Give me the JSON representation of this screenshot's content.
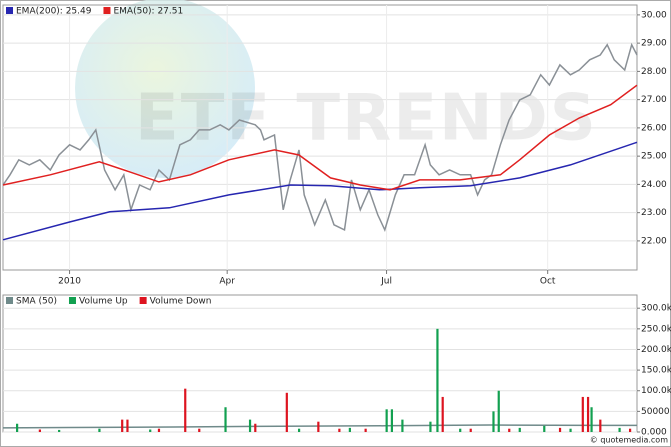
{
  "watermark": "ETF TRENDS",
  "footer": "© quotemedia.com",
  "chart_data": [
    {
      "type": "line",
      "grid": true,
      "legend": "top-left",
      "xlim": [
        -38,
        324
      ],
      "xticks": [
        {
          "value": 0,
          "label": "2010"
        },
        {
          "value": 90,
          "label": "Apr"
        },
        {
          "value": 181,
          "label": "Jul"
        },
        {
          "value": 273,
          "label": "Oct"
        }
      ],
      "ylim": [
        20.97,
        30.35
      ],
      "yticks": [
        {
          "value": 22,
          "label": "22.00"
        },
        {
          "value": 23,
          "label": "23.00"
        },
        {
          "value": 24,
          "label": "24.00"
        },
        {
          "value": 25,
          "label": "25.00"
        },
        {
          "value": 26,
          "label": "26.00"
        },
        {
          "value": 27,
          "label": "27.00"
        },
        {
          "value": 28,
          "label": "28.00"
        },
        {
          "value": 29,
          "label": "29.00"
        },
        {
          "value": 30,
          "label": "30.00"
        }
      ],
      "series": [
        {
          "color": "#8a9096",
          "x": [
            -38,
            -34,
            -29,
            -23,
            -17,
            -11,
            -6,
            0,
            6,
            11,
            15,
            20,
            26,
            31,
            35,
            40,
            46,
            51,
            57,
            63,
            69,
            74,
            80,
            86,
            91,
            97,
            106,
            109,
            111,
            117,
            122,
            126,
            131,
            134,
            140,
            146,
            151,
            157,
            161,
            166,
            171,
            176,
            180,
            186,
            191,
            197,
            203,
            206,
            211,
            217,
            223,
            229,
            233,
            237,
            241,
            246,
            251,
            257,
            263,
            269,
            274,
            280,
            286,
            291,
            297,
            303,
            307,
            311,
            317,
            321,
            324
          ],
          "values": [
            23.98,
            24.34,
            24.87,
            24.69,
            24.87,
            24.51,
            25.04,
            25.4,
            25.22,
            25.58,
            25.93,
            24.51,
            23.81,
            24.34,
            23.1,
            23.98,
            23.81,
            24.51,
            24.16,
            25.4,
            25.58,
            25.93,
            25.93,
            26.11,
            25.93,
            26.28,
            26.11,
            25.93,
            25.58,
            25.75,
            23.1,
            24.16,
            25.22,
            23.63,
            22.57,
            23.45,
            22.57,
            22.39,
            24.16,
            23.1,
            23.81,
            22.92,
            22.39,
            23.63,
            24.34,
            24.34,
            25.4,
            24.69,
            24.34,
            24.51,
            24.34,
            24.34,
            23.63,
            24.16,
            24.34,
            25.4,
            26.28,
            26.99,
            27.17,
            27.88,
            27.52,
            28.23,
            27.88,
            28.05,
            28.41,
            28.58,
            28.94,
            28.41,
            28.05,
            28.94,
            28.58
          ]
        },
        {
          "name": "EMA(200): 25.49",
          "color": "#2626b0",
          "x": [
            -38,
            0,
            23,
            57,
            91,
            126,
            149,
            177,
            200,
            229,
            257,
            286,
            324
          ],
          "values": [
            22.04,
            22.67,
            23.03,
            23.17,
            23.63,
            23.98,
            23.95,
            23.81,
            23.88,
            23.95,
            24.23,
            24.69,
            25.49
          ]
        },
        {
          "name": "EMA(50): 27.51",
          "color": "#e02020",
          "x": [
            -38,
            -11,
            17,
            34,
            51,
            69,
            91,
            117,
            131,
            149,
            166,
            183,
            200,
            223,
            246,
            257,
            274,
            291,
            309,
            324
          ],
          "values": [
            23.98,
            24.34,
            24.8,
            24.45,
            24.09,
            24.34,
            24.87,
            25.22,
            25.04,
            24.23,
            23.98,
            23.81,
            24.16,
            24.16,
            24.34,
            24.87,
            25.75,
            26.35,
            26.82,
            27.51
          ]
        }
      ]
    },
    {
      "type": "bar",
      "grid": true,
      "legend": "top-left",
      "xlim": [
        -38,
        324
      ],
      "ylim": [
        0,
        332000
      ],
      "yticks": [
        {
          "value": 0,
          "label": "0.000"
        },
        50000,
        {
          "value": 100000,
          "label": "100.0k"
        },
        {
          "value": 150000,
          "label": "150.0k"
        },
        {
          "value": 200000,
          "label": "200.0k"
        },
        {
          "value": 250000,
          "label": "250.0k"
        },
        {
          "value": 300000,
          "label": "300.0k"
        }
      ],
      "series": [
        {
          "name": "SMA (50)",
          "type": "line",
          "color": "#6f8a8a",
          "x": [
            -38,
            0,
            60,
            120,
            180,
            240,
            300,
            324
          ],
          "values": [
            10000,
            11000,
            12000,
            14000,
            15000,
            17000,
            16000,
            16000
          ]
        },
        {
          "name": "Volume Up",
          "type": "bar",
          "color": "#12a050",
          "x": [
            -30,
            -6,
            17,
            46,
            89,
            103,
            131,
            160,
            181,
            184,
            190,
            206,
            210,
            223,
            242,
            245,
            257,
            271,
            286,
            298,
            314
          ],
          "values": [
            20000,
            5000,
            8000,
            6000,
            60000,
            30000,
            8000,
            10000,
            55000,
            55000,
            30000,
            25000,
            250000,
            8000,
            50000,
            100000,
            10000,
            15000,
            8000,
            60000,
            10000
          ]
        },
        {
          "name": "Volume Down",
          "type": "bar",
          "color": "#dd1420",
          "x": [
            -17,
            30,
            33,
            51,
            66,
            74,
            106,
            124,
            142,
            154,
            169,
            213,
            229,
            251,
            280,
            293,
            296,
            303,
            320
          ],
          "values": [
            6000,
            30000,
            30000,
            8000,
            105000,
            8000,
            20000,
            95000,
            25000,
            8000,
            8000,
            85000,
            8000,
            8000,
            10000,
            85000,
            85000,
            30000,
            8000
          ]
        }
      ]
    }
  ]
}
